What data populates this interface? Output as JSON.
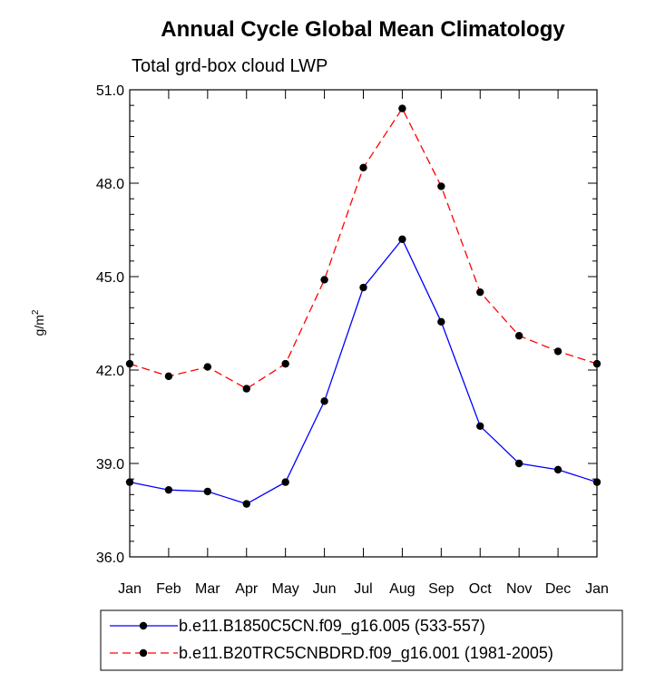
{
  "chart_data": {
    "type": "line",
    "title": "Annual Cycle Global Mean Climatology",
    "subtitle": "Total grd-box cloud LWP",
    "ylabel": "g/m",
    "ylabel_sup": "2",
    "xlabel": "",
    "ylim": [
      36.0,
      51.0
    ],
    "yticks": [
      "36.0",
      "39.0",
      "42.0",
      "45.0",
      "48.0",
      "51.0"
    ],
    "ytick_values": [
      36,
      39,
      42,
      45,
      48,
      51
    ],
    "yminor_step": 0.5,
    "categories": [
      "Jan",
      "Feb",
      "Mar",
      "Apr",
      "May",
      "Jun",
      "Jul",
      "Aug",
      "Sep",
      "Oct",
      "Nov",
      "Dec",
      "Jan"
    ],
    "series": [
      {
        "name": "b.e11.B1850C5CN.f09_g16.005 (533-557)",
        "color": "#0000ff",
        "dash": "solid",
        "values": [
          38.4,
          38.15,
          38.1,
          37.7,
          38.4,
          41.0,
          44.65,
          46.2,
          43.55,
          40.2,
          39.0,
          38.8,
          38.4
        ]
      },
      {
        "name": "b.e11.B20TRC5CNBDRD.f09_g16.001 (1981-2005)",
        "color": "#ff0000",
        "dash": "dashed",
        "values": [
          42.2,
          41.8,
          42.1,
          41.4,
          42.2,
          44.9,
          48.5,
          50.4,
          47.9,
          44.5,
          43.1,
          42.6,
          42.2
        ]
      }
    ],
    "marker_color": "#000000",
    "legend_position": "bottom"
  }
}
